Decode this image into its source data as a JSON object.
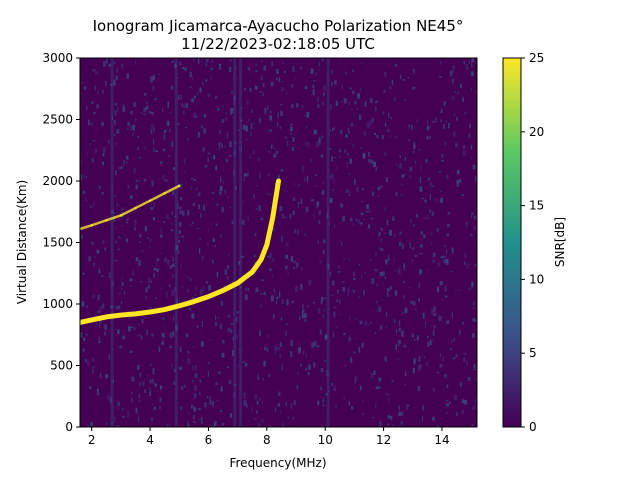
{
  "chart_data": {
    "type": "heatmap",
    "title": "Ionogram Jicamarca-Ayacucho Polarization NE45°",
    "subtitle": "11/22/2023-02:18:05 UTC",
    "xlabel": "Frequency(MHz)",
    "ylabel": "Virtual Distance(Km)",
    "xlim": [
      1.6,
      15.2
    ],
    "ylim": [
      0,
      3000
    ],
    "x_ticks": [
      2,
      4,
      6,
      8,
      10,
      12,
      14
    ],
    "y_ticks": [
      0,
      500,
      1000,
      1500,
      2000,
      2500,
      3000
    ],
    "grid": false,
    "colorbar": {
      "label": "SNR[dB]",
      "range": [
        0,
        25
      ],
      "ticks": [
        0,
        5,
        10,
        15,
        20,
        25
      ],
      "colormap": "viridis"
    },
    "colors": {
      "background": "#440154",
      "noise": "#3b528b",
      "trace": "#fde725"
    },
    "series": [
      {
        "x": [
          1.6,
          2.0,
          2.5,
          3.0,
          3.5,
          4.0,
          4.5,
          5.0,
          5.5,
          6.0,
          6.5,
          7.0,
          7.5,
          7.8,
          8.0,
          8.2,
          8.4
        ],
        "y": [
          850,
          870,
          895,
          910,
          920,
          935,
          955,
          985,
          1020,
          1060,
          1110,
          1170,
          1260,
          1360,
          1480,
          1700,
          2000
        ]
      },
      {
        "x": [
          1.6,
          2.0,
          2.5,
          3.0,
          3.5,
          4.0,
          4.5,
          5.0
        ],
        "y": [
          1610,
          1640,
          1680,
          1720,
          1780,
          1840,
          1900,
          1960
        ]
      }
    ]
  }
}
